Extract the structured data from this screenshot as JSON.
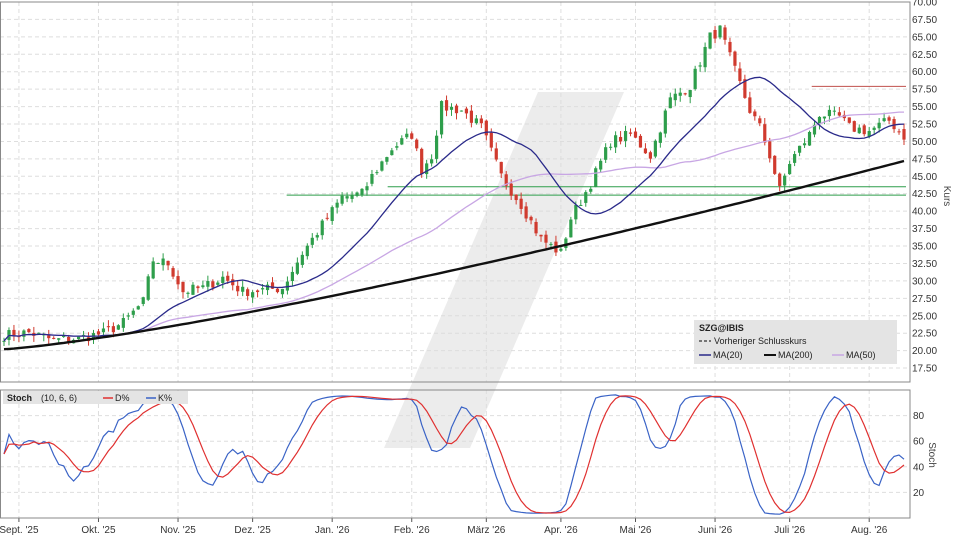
{
  "chart_data": [
    {
      "type": "candlestick",
      "symbol": "SZG@IBIS",
      "ylabel": "Kurs",
      "ylim": [
        15.5,
        70.0
      ],
      "yticks": [
        "70.00",
        "67.50",
        "65.00",
        "62.50",
        "60.00",
        "57.50",
        "55.00",
        "52.50",
        "50.00",
        "47.50",
        "45.00",
        "42.50",
        "40.00",
        "37.50",
        "35.00",
        "32.50",
        "30.00",
        "27.50",
        "25.00",
        "22.50",
        "20.00",
        "17.50"
      ],
      "months": [
        "Sept. '25",
        "Okt. '25",
        "Nov. '25",
        "Dez. '25",
        "Jan. '26",
        "Feb. '26",
        "März '26",
        "Apr. '26",
        "Mai '26",
        "Juni '26",
        "Juli '26",
        "Aug. '26"
      ],
      "close_anchors": [
        [
          0,
          22.2
        ],
        [
          5,
          22.6
        ],
        [
          10,
          21.5
        ],
        [
          15,
          21.8
        ],
        [
          20,
          22.5
        ],
        [
          24,
          24.0
        ],
        [
          28,
          27.0
        ],
        [
          30,
          33.0
        ],
        [
          33,
          32.5
        ],
        [
          36,
          28.5
        ],
        [
          40,
          29.0
        ],
        [
          44,
          30.5
        ],
        [
          48,
          28.5
        ],
        [
          52,
          28.7
        ],
        [
          56,
          29.0
        ],
        [
          60,
          34.0
        ],
        [
          64,
          38.0
        ],
        [
          68,
          42.0
        ],
        [
          72,
          42.5
        ],
        [
          74,
          45.0
        ],
        [
          78,
          49.0
        ],
        [
          82,
          51.0
        ],
        [
          84,
          46.0
        ],
        [
          86,
          48.0
        ],
        [
          88,
          55.0
        ],
        [
          92,
          54.5
        ],
        [
          96,
          52.0
        ],
        [
          100,
          45.0
        ],
        [
          104,
          41.0
        ],
        [
          108,
          36.0
        ],
        [
          112,
          34.0
        ],
        [
          114,
          39.0
        ],
        [
          118,
          44.0
        ],
        [
          122,
          50.0
        ],
        [
          126,
          51.0
        ],
        [
          130,
          48.0
        ],
        [
          134,
          56.0
        ],
        [
          138,
          58.0
        ],
        [
          142,
          65.0
        ],
        [
          144,
          66.0
        ],
        [
          146,
          62.0
        ],
        [
          150,
          54.5
        ],
        [
          152,
          52.0
        ],
        [
          154,
          48.0
        ],
        [
          156,
          43.0
        ],
        [
          158,
          47.0
        ],
        [
          162,
          51.0
        ],
        [
          164,
          54.0
        ],
        [
          168,
          53.5
        ],
        [
          170,
          52.0
        ],
        [
          174,
          51.5
        ],
        [
          178,
          53.0
        ],
        [
          181,
          50.8
        ]
      ],
      "series": [
        {
          "name": "MA(20)",
          "color": "#2a2a8a"
        },
        {
          "name": "MA(200)",
          "color": "#111111"
        },
        {
          "name": "MA(50)",
          "color": "#c8a6e4"
        }
      ],
      "horizontal_lines": [
        {
          "value": 57.9,
          "color": "#c0504d",
          "x_start_frac": 0.892
        },
        {
          "value": 43.5,
          "color": "#2e9e4b",
          "x_start_frac": 0.426
        },
        {
          "value": 42.3,
          "color": "#2e9e4b",
          "x_start_frac": 0.315
        }
      ],
      "legend": {
        "symbol": "SZG@IBIS",
        "prev_close": "Vorheriger Schlusskurs",
        "items": [
          "MA(20)",
          "MA(200)",
          "MA(50)"
        ]
      }
    },
    {
      "type": "line",
      "title": "Stoch",
      "params": "(10, 6, 6)",
      "ylabel": "Stoch",
      "ylim": [
        0,
        100
      ],
      "yticks": [
        "80",
        "60",
        "40",
        "20"
      ],
      "series": [
        {
          "name": "D%",
          "color": "#e03030"
        },
        {
          "name": "K%",
          "color": "#3a63c6"
        }
      ]
    }
  ]
}
